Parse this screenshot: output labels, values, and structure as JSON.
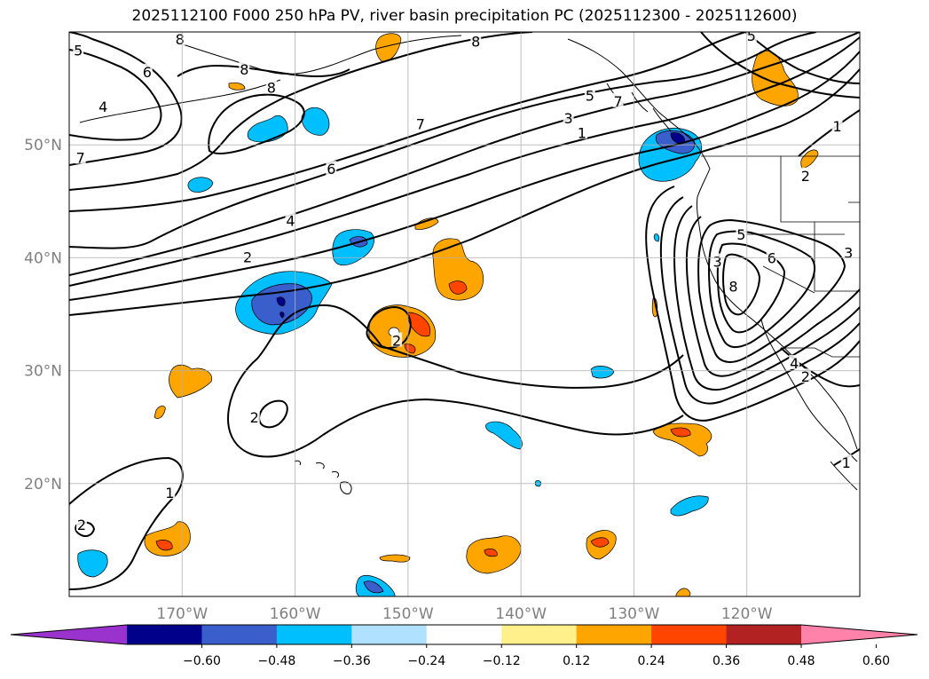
{
  "title": "2025112100 F000 250 hPa PV, river basin precipitation PC (2025112300 - 2025112600)",
  "map": {
    "lat_labels": [
      {
        "text": "50°N",
        "lat": 50
      },
      {
        "text": "40°N",
        "lat": 40
      },
      {
        "text": "30°N",
        "lat": 30
      },
      {
        "text": "20°N",
        "lat": 20
      }
    ],
    "lon_labels": [
      {
        "text": "170°W",
        "lon": -170
      },
      {
        "text": "160°W",
        "lon": -160
      },
      {
        "text": "150°W",
        "lon": -150
      },
      {
        "text": "140°W",
        "lon": -140
      },
      {
        "text": "130°W",
        "lon": -130
      },
      {
        "text": "120°W",
        "lon": -120
      }
    ],
    "extent": {
      "lon_min": -180,
      "lon_max": -110,
      "lat_min": 10,
      "lat_max": 60
    },
    "grid": true
  },
  "colorbar": {
    "ticks": [
      "−0.60",
      "−0.48",
      "−0.36",
      "−0.24",
      "−0.12",
      "0.12",
      "0.24",
      "0.36",
      "0.48",
      "0.60"
    ],
    "colors": [
      "#9a32cd",
      "#00008b",
      "#3a5fcd",
      "#00bfff",
      "#b0e2ff",
      "#ffffff",
      "#fff08c",
      "#ffa500",
      "#ff4500",
      "#b22222",
      "#ff82ab"
    ],
    "extend": "both"
  },
  "contour_labels": [
    {
      "text": "5",
      "lon": -179.2,
      "lat": 58.3
    },
    {
      "text": "8",
      "lon": -170.2,
      "lat": 59.3
    },
    {
      "text": "6",
      "lon": -173.1,
      "lat": 56.4
    },
    {
      "text": "8",
      "lon": -164.5,
      "lat": 56.6
    },
    {
      "text": "8",
      "lon": -162.1,
      "lat": 55.0
    },
    {
      "text": "4",
      "lon": -177.0,
      "lat": 53.3
    },
    {
      "text": "7",
      "lon": -179.0,
      "lat": 48.8
    },
    {
      "text": "8",
      "lon": -144.0,
      "lat": 59.1
    },
    {
      "text": "7",
      "lon": -148.9,
      "lat": 51.8
    },
    {
      "text": "6",
      "lon": -156.8,
      "lat": 47.8
    },
    {
      "text": "4",
      "lon": -160.4,
      "lat": 43.2
    },
    {
      "text": "2",
      "lon": -164.2,
      "lat": 40.0
    },
    {
      "text": "5",
      "lon": -133.9,
      "lat": 54.3
    },
    {
      "text": "3",
      "lon": -135.8,
      "lat": 52.3
    },
    {
      "text": "1",
      "lon": -134.6,
      "lat": 51.0
    },
    {
      "text": "7",
      "lon": -131.4,
      "lat": 53.8
    },
    {
      "text": "5",
      "lon": -119.6,
      "lat": 59.6
    },
    {
      "text": "1",
      "lon": -112.0,
      "lat": 51.6
    },
    {
      "text": "2",
      "lon": -114.8,
      "lat": 47.2
    },
    {
      "text": "5",
      "lon": -120.5,
      "lat": 42.0
    },
    {
      "text": "6",
      "lon": -117.8,
      "lat": 39.9
    },
    {
      "text": "3",
      "lon": -122.6,
      "lat": 39.6
    },
    {
      "text": "8",
      "lon": -121.2,
      "lat": 37.4
    },
    {
      "text": "3",
      "lon": -111.0,
      "lat": 40.4
    },
    {
      "text": "4",
      "lon": -115.8,
      "lat": 30.6
    },
    {
      "text": "2",
      "lon": -114.8,
      "lat": 29.4
    },
    {
      "text": "1",
      "lon": -111.2,
      "lat": 21.8
    },
    {
      "text": "2",
      "lon": -151.0,
      "lat": 32.6
    },
    {
      "text": "2",
      "lon": -163.6,
      "lat": 25.8
    },
    {
      "text": "1",
      "lon": -171.1,
      "lat": 19.1
    },
    {
      "text": "2",
      "lon": -178.9,
      "lat": 16.3
    }
  ]
}
